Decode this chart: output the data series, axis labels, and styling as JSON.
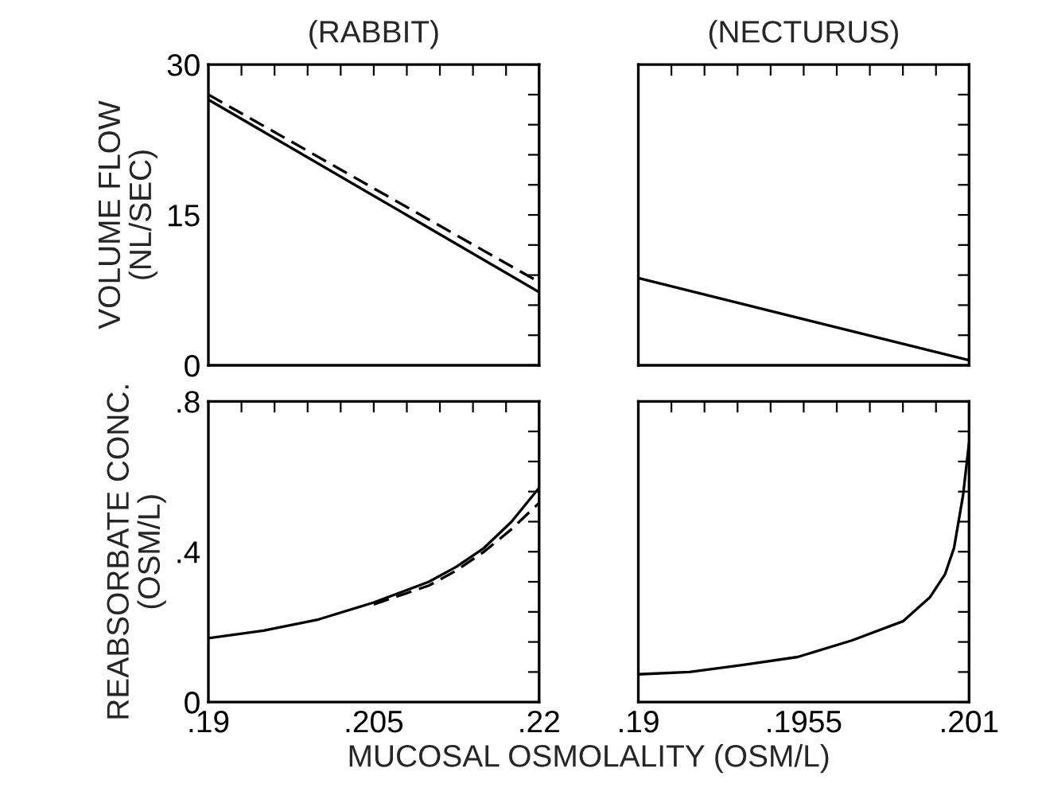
{
  "chart_data": [
    {
      "type": "line",
      "title": "(RABBIT)",
      "ylabel": "VOLUME FLOW\n(NL/SEC)",
      "tick_labels": "y",
      "grid": false,
      "legend": false,
      "xlim": [
        0.19,
        0.22
      ],
      "ylim": [
        0,
        30
      ],
      "xticks": [
        {
          "value": 0.19,
          "label": null
        },
        {
          "value": 0.193,
          "label": null
        },
        {
          "value": 0.196,
          "label": null
        },
        {
          "value": 0.199,
          "label": null
        },
        {
          "value": 0.202,
          "label": null
        },
        {
          "value": 0.205,
          "label": null
        },
        {
          "value": 0.208,
          "label": null
        },
        {
          "value": 0.211,
          "label": null
        },
        {
          "value": 0.214,
          "label": null
        },
        {
          "value": 0.217,
          "label": null
        },
        {
          "value": 0.22,
          "label": null
        }
      ],
      "yticks": [
        0,
        {
          "value": 3,
          "label": null
        },
        {
          "value": 6,
          "label": null
        },
        {
          "value": 9,
          "label": null
        },
        {
          "value": 12,
          "label": null
        },
        15,
        {
          "value": 18,
          "label": null
        },
        {
          "value": 21,
          "label": null
        },
        {
          "value": 24,
          "label": null
        },
        {
          "value": 27,
          "label": null
        },
        30
      ],
      "series": [
        {
          "color": "#000000",
          "line_style": "solid",
          "x": [
            0.19,
            0.22
          ],
          "values": [
            26.5,
            7.3
          ]
        },
        {
          "color": "#000000",
          "line_style": "dashed",
          "x": [
            0.19,
            0.22
          ],
          "values": [
            27.0,
            8.3
          ]
        }
      ]
    },
    {
      "type": "line",
      "title": "(NECTURUS)",
      "tick_labels": false,
      "grid": false,
      "legend": false,
      "xlim": [
        0.19,
        0.201
      ],
      "ylim": [
        0,
        30
      ],
      "xticks": [
        {
          "value": 0.19,
          "label": null
        },
        {
          "value": 0.1911,
          "label": null
        },
        {
          "value": 0.1922,
          "label": null
        },
        {
          "value": 0.1933,
          "label": null
        },
        {
          "value": 0.1944,
          "label": null
        },
        {
          "value": 0.1955,
          "label": null
        },
        {
          "value": 0.1966,
          "label": null
        },
        {
          "value": 0.1977,
          "label": null
        },
        {
          "value": 0.1988,
          "label": null
        },
        {
          "value": 0.1999,
          "label": null
        },
        {
          "value": 0.201,
          "label": null
        }
      ],
      "yticks": [
        {
          "value": 0,
          "label": null
        },
        {
          "value": 3,
          "label": null
        },
        {
          "value": 6,
          "label": null
        },
        {
          "value": 9,
          "label": null
        },
        {
          "value": 12,
          "label": null
        },
        {
          "value": 15,
          "label": null
        },
        {
          "value": 18,
          "label": null
        },
        {
          "value": 21,
          "label": null
        },
        {
          "value": 24,
          "label": null
        },
        {
          "value": 27,
          "label": null
        },
        {
          "value": 30,
          "label": null
        }
      ],
      "series": [
        {
          "color": "#000000",
          "line_style": "solid",
          "x": [
            0.19,
            0.201
          ],
          "values": [
            8.7,
            0.5
          ]
        }
      ]
    },
    {
      "type": "line",
      "ylabel": "REABSORBATE CONC.\n(OSM/L)",
      "xlabel": "MUCOSAL OSMOLALITY (OSM/L)",
      "grid": false,
      "legend": false,
      "xlim": [
        0.19,
        0.22
      ],
      "ylim": [
        0,
        0.8
      ],
      "xticks": [
        {
          "value": 0.19,
          "label": ".19"
        },
        {
          "value": 0.193,
          "label": null
        },
        {
          "value": 0.196,
          "label": null
        },
        {
          "value": 0.199,
          "label": null
        },
        {
          "value": 0.202,
          "label": null
        },
        {
          "value": 0.205,
          "label": ".205"
        },
        {
          "value": 0.208,
          "label": null
        },
        {
          "value": 0.211,
          "label": null
        },
        {
          "value": 0.214,
          "label": null
        },
        {
          "value": 0.217,
          "label": null
        },
        {
          "value": 0.22,
          "label": ".22"
        }
      ],
      "yticks": [
        0,
        {
          "value": 0.08,
          "label": null
        },
        {
          "value": 0.16,
          "label": null
        },
        {
          "value": 0.24,
          "label": null
        },
        {
          "value": 0.32,
          "label": null
        },
        {
          "value": 0.4,
          "label": ".4"
        },
        {
          "value": 0.48,
          "label": null
        },
        {
          "value": 0.56,
          "label": null
        },
        {
          "value": 0.64,
          "label": null
        },
        {
          "value": 0.72,
          "label": null
        },
        {
          "value": 0.8,
          "label": ".8"
        }
      ],
      "series": [
        {
          "color": "#000000",
          "line_style": "solid",
          "x": [
            0.19,
            0.195,
            0.2,
            0.205,
            0.21,
            0.2125,
            0.215,
            0.2175,
            0.22
          ],
          "values": [
            0.17,
            0.19,
            0.22,
            0.265,
            0.32,
            0.36,
            0.41,
            0.48,
            0.57
          ]
        },
        {
          "color": "#000000",
          "line_style": "dashed",
          "x": [
            0.205,
            0.21,
            0.2125,
            0.215,
            0.2175,
            0.22
          ],
          "values": [
            0.26,
            0.31,
            0.35,
            0.4,
            0.46,
            0.53
          ]
        }
      ]
    },
    {
      "type": "line",
      "tick_labels": "x",
      "grid": false,
      "legend": false,
      "xlim": [
        0.19,
        0.201
      ],
      "ylim": [
        0,
        0.8
      ],
      "xticks": [
        {
          "value": 0.19,
          "label": ".19"
        },
        {
          "value": 0.1911,
          "label": null
        },
        {
          "value": 0.1922,
          "label": null
        },
        {
          "value": 0.1933,
          "label": null
        },
        {
          "value": 0.1944,
          "label": null
        },
        {
          "value": 0.1955,
          "label": ".1955"
        },
        {
          "value": 0.1966,
          "label": null
        },
        {
          "value": 0.1977,
          "label": null
        },
        {
          "value": 0.1988,
          "label": null
        },
        {
          "value": 0.1999,
          "label": null
        },
        {
          "value": 0.201,
          "label": ".201"
        }
      ],
      "yticks": [
        {
          "value": 0,
          "label": null
        },
        {
          "value": 0.08,
          "label": null
        },
        {
          "value": 0.16,
          "label": null
        },
        {
          "value": 0.24,
          "label": null
        },
        {
          "value": 0.32,
          "label": null
        },
        {
          "value": 0.4,
          "label": null
        },
        {
          "value": 0.48,
          "label": null
        },
        {
          "value": 0.56,
          "label": null
        },
        {
          "value": 0.64,
          "label": null
        },
        {
          "value": 0.72,
          "label": null
        },
        {
          "value": 0.8,
          "label": null
        }
      ],
      "series": [
        {
          "color": "#000000",
          "line_style": "solid",
          "x": [
            0.19,
            0.1917,
            0.1935,
            0.1953,
            0.1971,
            0.1988,
            0.1997,
            0.2002,
            0.2005,
            0.2008,
            0.201
          ],
          "values": [
            0.074,
            0.08,
            0.099,
            0.12,
            0.164,
            0.215,
            0.279,
            0.34,
            0.41,
            0.55,
            0.69
          ]
        }
      ]
    }
  ]
}
